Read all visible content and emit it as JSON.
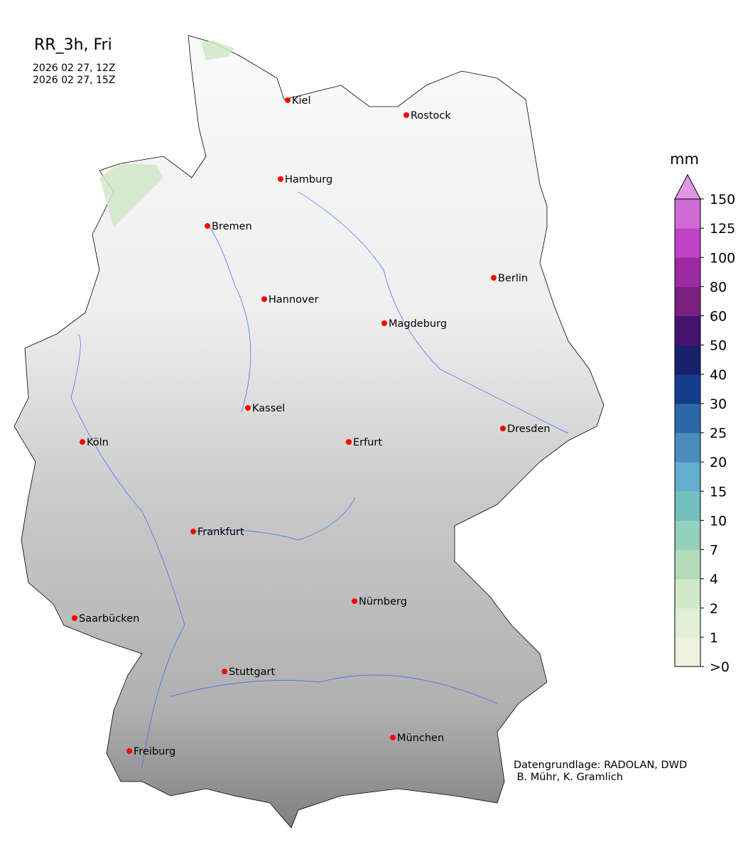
{
  "header": {
    "title": "RR_3h, Fri",
    "start_time": "2026 02 27, 12Z",
    "end_time": "2026 02 27, 15Z"
  },
  "colorbar": {
    "unit": "mm",
    "extend": "max",
    "tick_labels": [
      ">0",
      "1",
      "2",
      "4",
      "7",
      "10",
      "15",
      "20",
      "25",
      "30",
      "40",
      "50",
      "60",
      "80",
      "100",
      "125",
      "150"
    ],
    "colors": [
      "#f0f0e0",
      "#e1efd8",
      "#d0e8c8",
      "#b3dbba",
      "#93d0bd",
      "#74bfc0",
      "#63aecd",
      "#4a8cbc",
      "#2c68a8",
      "#163d8d",
      "#18216b",
      "#45126e",
      "#78207e",
      "#9d2aa3",
      "#bf42c8",
      "#d06ad4"
    ],
    "over_color": "#e098e4"
  },
  "cities": [
    "Kiel",
    "Rostock",
    "Hamburg",
    "Bremen",
    "Berlin",
    "Hannover",
    "Magdeburg",
    "Kassel",
    "Köln",
    "Erfurt",
    "Dresden",
    "Frankfurt",
    "Nürnberg",
    "Saarbücken",
    "Stuttgart",
    "Freiburg",
    "München"
  ],
  "city_marker_color": "#ff0000",
  "river_color": "#3366ff",
  "credit": {
    "line1": "Datengrundlage: RADOLAN, DWD",
    "line2": " B. Mühr, K. Gramlich"
  }
}
